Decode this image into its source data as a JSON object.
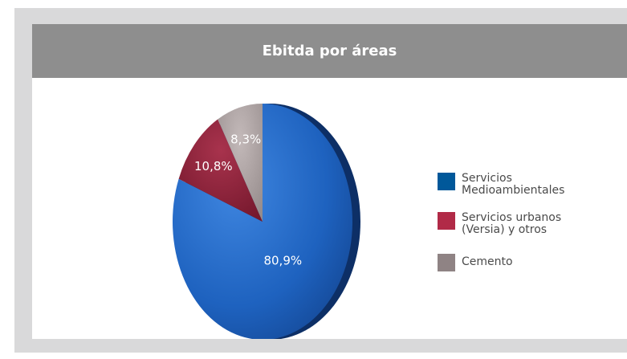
{
  "chart_data": {
    "type": "pie",
    "title": "Ebitda por áreas",
    "slices": [
      {
        "label": "Servicios Medioambientales",
        "value": 80.9,
        "display": "80,9%",
        "color": "#1e5aa8"
      },
      {
        "label": "Servicios urbanos (Versia) y otros",
        "value": 10.8,
        "display": "10,8%",
        "color": "#8c2138"
      },
      {
        "label": "Cemento",
        "value": 8.3,
        "display": "8,3%",
        "color": "#a89d9d"
      }
    ],
    "legend": {
      "position": "right",
      "entries": [
        {
          "lines": [
            "Servicios",
            "Medioambientales"
          ],
          "color": "#00589a"
        },
        {
          "lines": [
            "Servicios urbanos",
            "(Versia) y otros"
          ],
          "color": "#b12a47"
        },
        {
          "lines": [
            "Cemento"
          ],
          "color": "#8f8384"
        }
      ]
    }
  }
}
